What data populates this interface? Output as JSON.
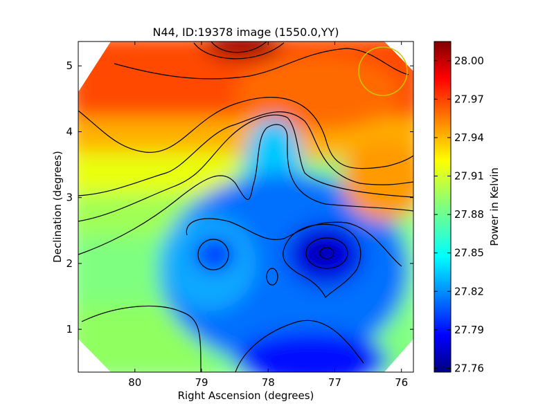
{
  "chart_data": {
    "type": "heatmap",
    "title": "N44, ID:19378 image (1550.0,YY)",
    "xlabel": "Right Ascension (degrees)",
    "ylabel": "Declination (degrees)",
    "colorbar_label": "Power in Kelvin",
    "xlim": [
      80.85,
      75.82
    ],
    "ylim": [
      0.35,
      5.37
    ],
    "x_ticks": [
      80,
      79,
      78,
      77,
      76
    ],
    "x_tick_labels": [
      "80",
      "79",
      "78",
      "77",
      "76"
    ],
    "y_ticks": [
      1,
      2,
      3,
      4,
      5
    ],
    "y_tick_labels": [
      "1",
      "2",
      "3",
      "4",
      "5"
    ],
    "colorbar_range": [
      27.757,
      28.015
    ],
    "colorbar_ticks": [
      28.0,
      27.97,
      27.94,
      27.91,
      27.88,
      27.85,
      27.82,
      27.79,
      27.76
    ],
    "colorbar_tick_labels": [
      "28.00",
      "27.97",
      "27.94",
      "27.91",
      "27.88",
      "27.85",
      "27.82",
      "27.79",
      "27.76"
    ],
    "colormap": "jet",
    "grid": false,
    "features": [
      {
        "name": "maximum",
        "ra": 78.35,
        "dec": 5.3,
        "value": 28.005
      },
      {
        "name": "minimum",
        "ra": 77.08,
        "dec": 2.15,
        "value": 27.76
      },
      {
        "name": "low-region",
        "ra": 77.4,
        "dec": 0.55,
        "value": 27.79
      },
      {
        "name": "local-low",
        "ra": 78.75,
        "dec": 2.15,
        "value": 27.815
      }
    ],
    "marker_circle": {
      "ra": 76.25,
      "dec": 4.9,
      "radius_deg": 0.37,
      "color": "#c8c800"
    }
  }
}
